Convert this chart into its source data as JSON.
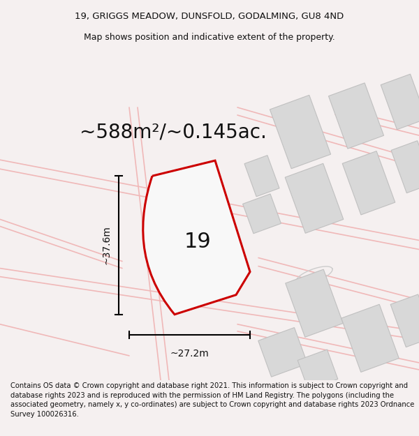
{
  "title_line1": "19, GRIGGS MEADOW, DUNSFOLD, GODALMING, GU8 4ND",
  "title_line2": "Map shows position and indicative extent of the property.",
  "area_text": "~588m²/~0.145ac.",
  "number_label": "19",
  "dim_width": "~27.2m",
  "dim_height": "~37.6m",
  "footer": "Contains OS data © Crown copyright and database right 2021. This information is subject to Crown copyright and database rights 2023 and is reproduced with the permission of HM Land Registry. The polygons (including the associated geometry, namely x, y co-ordinates) are subject to Crown copyright and database rights 2023 Ordnance Survey 100026316.",
  "bg_color": "#f5f0f0",
  "map_bg": "#ffffff",
  "plot_fill": "#ffffff",
  "plot_edge": "#cc0000",
  "building_fill": "#d8d8d8",
  "building_edge": "#c0c0c0",
  "pink_line": "#f0b8b8",
  "dim_color": "#000000",
  "title_fontsize": 9.5,
  "area_fontsize": 20,
  "number_fontsize": 20,
  "dim_fontsize": 10,
  "footer_fontsize": 7.2
}
